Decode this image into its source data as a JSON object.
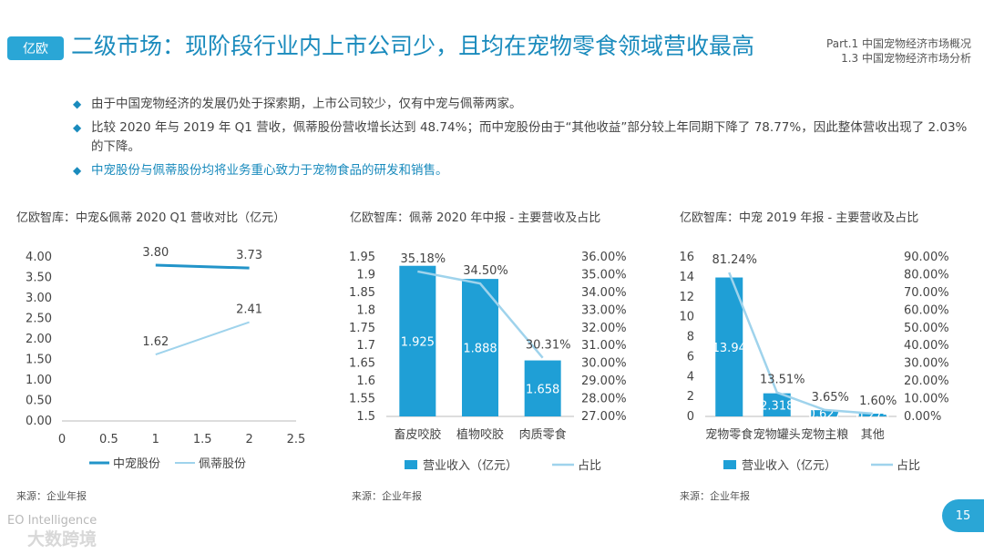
{
  "header": {
    "logo_text": "亿欧",
    "title": "二级市场：现阶段行业内上市公司少，且均在宠物零食领域营收最高",
    "part": "Part.1 中国宠物经济市场概况",
    "section": "1.3 中国宠物经济市场分析"
  },
  "bullets": [
    {
      "text": "由于中国宠物经济的发展仍处于探索期，上市公司较少，仅有中宠与佩蒂两家。",
      "highlight": false
    },
    {
      "text": "比较 2020 年与 2019 年 Q1 营收，佩蒂股份营收增长达到 48.74%；而中宠股份由于“其他收益”部分较上年同期下降了 78.77%，因此整体营收出现了 2.03% 的下降。",
      "highlight": false
    },
    {
      "text": "中宠股份与佩蒂股份均将业务重心致力于宠物食品的研发和销售。",
      "highlight": true
    }
  ],
  "source": "来源：企业年报",
  "footer": "EO Intelligence",
  "watermark": "大数跨境",
  "page_number": "15",
  "colors": {
    "accent": "#1a8bbd",
    "bar": "#1f9fd6",
    "light_line": "#9fd3ec",
    "dark_line": "#2294c9"
  },
  "chart_data": [
    {
      "type": "line",
      "title": "亿欧智库：中宠&佩蒂 2020 Q1 营收对比（亿元）",
      "x_ticks": [
        "0",
        "0.5",
        "1",
        "1.5",
        "2",
        "2.5"
      ],
      "xlim": [
        0,
        2.5
      ],
      "y_ticks": [
        "0.00",
        "0.50",
        "1.00",
        "1.50",
        "2.00",
        "2.50",
        "3.00",
        "3.50",
        "4.00"
      ],
      "ylim": [
        0,
        4
      ],
      "legend_position": "bottom",
      "series": [
        {
          "name": "中宠股份",
          "color": "#2294c9",
          "x": [
            1,
            2
          ],
          "values": [
            3.8,
            3.73
          ],
          "labels": [
            "3.80",
            "3.73"
          ]
        },
        {
          "name": "佩蒂股份",
          "color": "#9fd3ec",
          "x": [
            1,
            2
          ],
          "values": [
            1.62,
            2.41
          ],
          "labels": [
            "1.62",
            "2.41"
          ]
        }
      ]
    },
    {
      "type": "bar",
      "title": "亿欧智库：佩蒂 2020 年中报 - 主要营收及占比",
      "categories": [
        "畜皮咬胶",
        "植物咬胶",
        "肉质零食"
      ],
      "y_ticks": [
        "1.5",
        "1.55",
        "1.6",
        "1.65",
        "1.7",
        "1.75",
        "1.8",
        "1.85",
        "1.9",
        "1.95"
      ],
      "ylim": [
        1.5,
        1.95
      ],
      "y2_ticks": [
        "27.00%",
        "28.00%",
        "29.00%",
        "30.00%",
        "31.00%",
        "32.00%",
        "33.00%",
        "34.00%",
        "35.00%",
        "36.00%"
      ],
      "y2lim": [
        27,
        36
      ],
      "legend_position": "bottom",
      "series": [
        {
          "name": "营业收入（亿元）",
          "kind": "bar",
          "values": [
            1.925,
            1.888,
            1.658
          ],
          "labels": [
            "1.925",
            "1.888",
            "1.658"
          ]
        },
        {
          "name": "占比",
          "kind": "line",
          "axis": "right",
          "values": [
            35.18,
            34.5,
            30.31
          ],
          "labels": [
            "35.18%",
            "34.50%",
            "30.31%"
          ]
        }
      ]
    },
    {
      "type": "bar",
      "title": "亿欧智库：中宠 2019 年报 - 主要营收及占比",
      "categories": [
        "宠物零食",
        "宠物罐头",
        "宠物主粮",
        "其他"
      ],
      "y_ticks": [
        "0",
        "2",
        "4",
        "6",
        "8",
        "10",
        "12",
        "14",
        "16"
      ],
      "ylim": [
        0,
        16
      ],
      "y2_ticks": [
        "0.00%",
        "10.00%",
        "20.00%",
        "30.00%",
        "40.00%",
        "50.00%",
        "60.00%",
        "70.00%",
        "80.00%",
        "90.00%"
      ],
      "y2lim": [
        0,
        90
      ],
      "legend_position": "bottom",
      "series": [
        {
          "name": "营业收入（亿元）",
          "kind": "bar",
          "values": [
            13.94,
            2.318,
            0.627,
            0.275
          ],
          "labels": [
            "13.94",
            "2.318",
            "0.627",
            "0.275"
          ]
        },
        {
          "name": "占比",
          "kind": "line",
          "axis": "right",
          "values": [
            81.24,
            13.51,
            3.65,
            1.6
          ],
          "labels": [
            "81.24%",
            "13.51%",
            "3.65%",
            "1.60%"
          ]
        }
      ]
    }
  ]
}
